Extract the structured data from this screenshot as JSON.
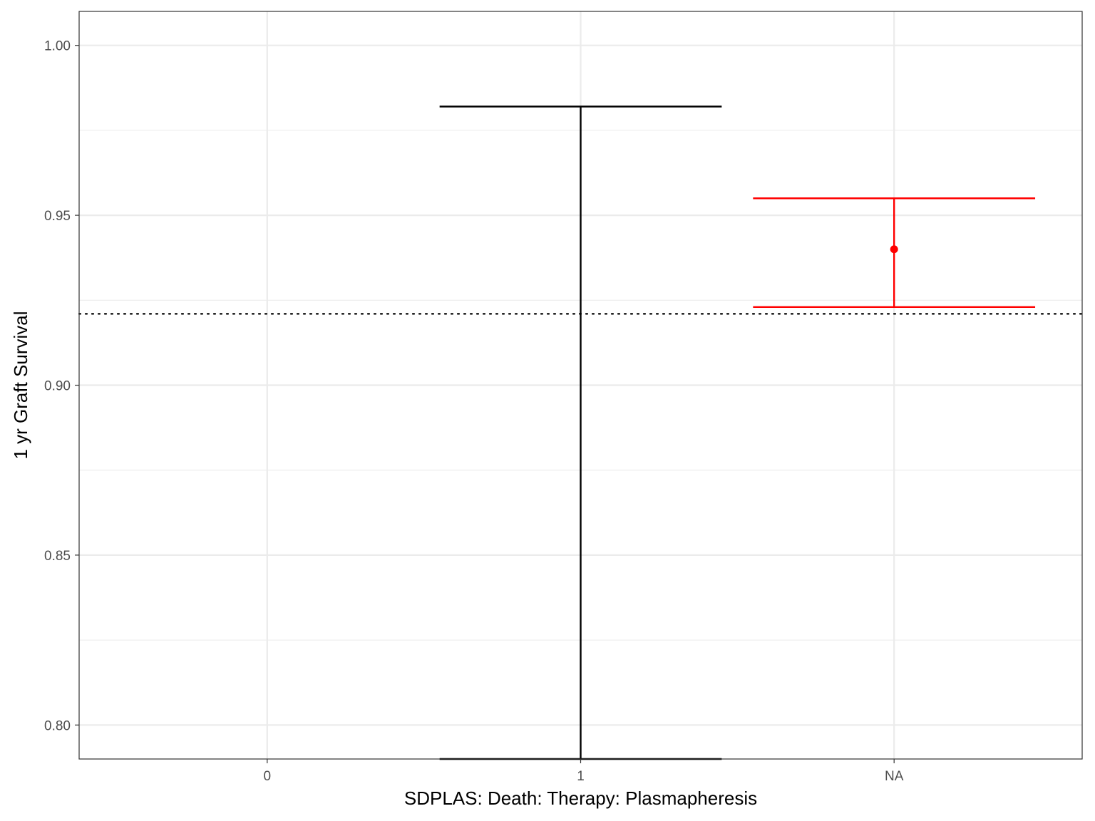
{
  "chart_data": {
    "type": "errorbar",
    "title": "",
    "xlabel": "SDPLAS: Death: Therapy: Plasmapheresis",
    "ylabel": "1 yr Graft Survival",
    "categories": [
      "0",
      "1",
      "NA"
    ],
    "ylim": [
      0.79,
      1.01
    ],
    "yticks": [
      0.8,
      0.85,
      0.9,
      0.95,
      1.0
    ],
    "ytick_labels": [
      "0.80",
      "0.85",
      "0.90",
      "0.95",
      "1.00"
    ],
    "grid": true,
    "reference_line": {
      "y": 0.921,
      "style": "dotted",
      "color": "#000000"
    },
    "points": [
      {
        "category": "1",
        "estimate": null,
        "lower": 0.79,
        "upper": 0.982,
        "color": "#000000"
      },
      {
        "category": "NA",
        "estimate": 0.94,
        "lower": 0.923,
        "upper": 0.955,
        "color": "#ff0000"
      }
    ]
  }
}
